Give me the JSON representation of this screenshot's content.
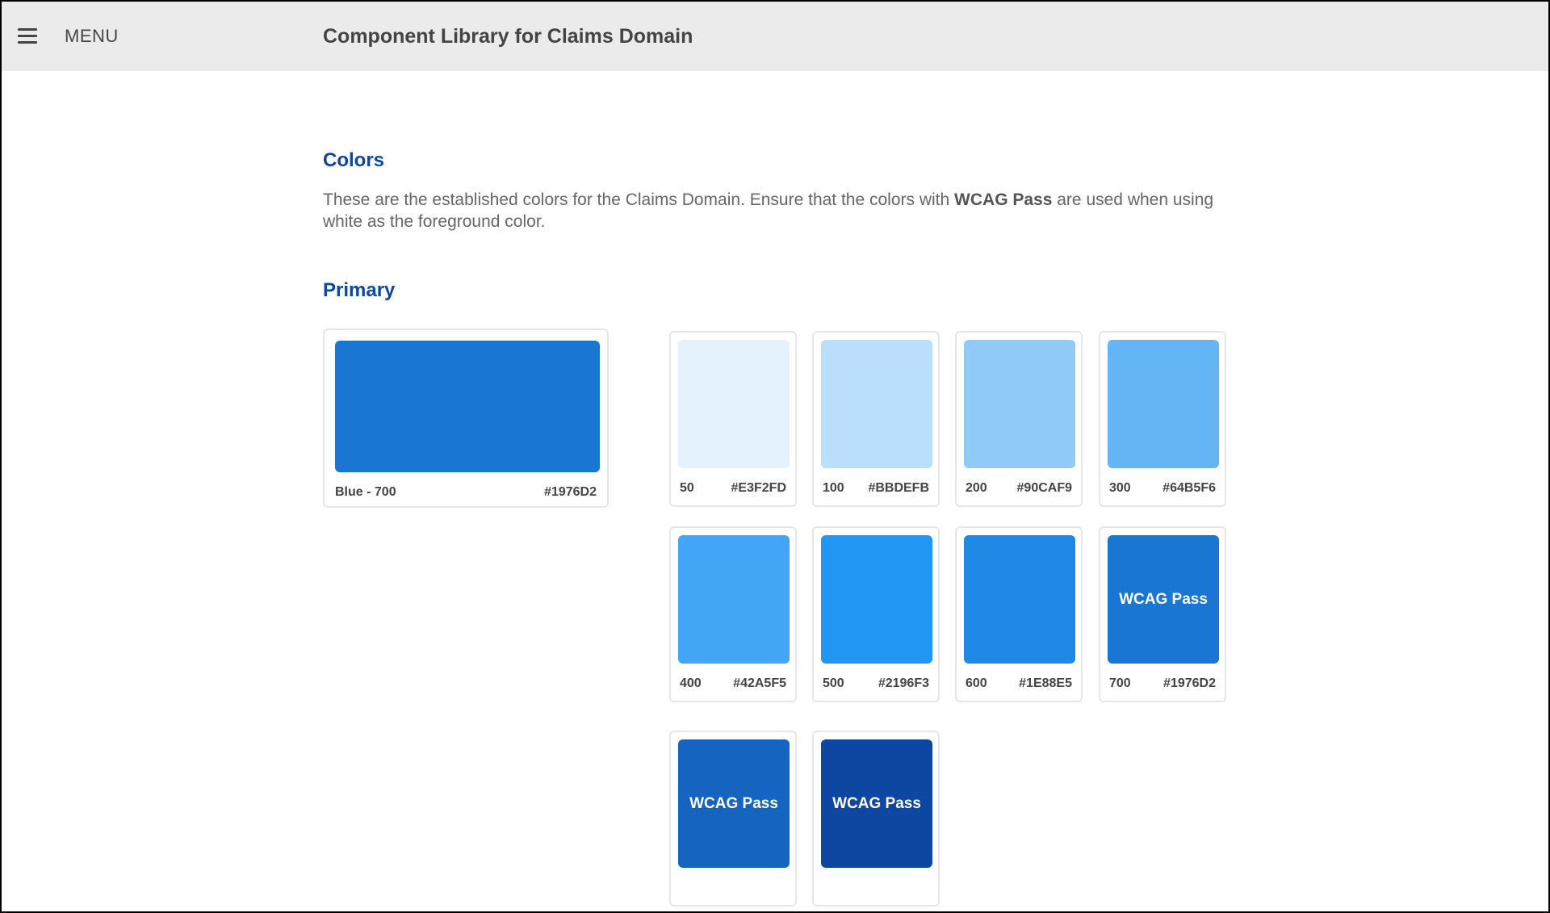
{
  "header": {
    "menu_label": "MENU",
    "title": "Component Library for Claims Domain"
  },
  "colors_section": {
    "title": "Colors",
    "description_pre": "These are the established colors for the Claims Domain. Ensure that the colors with ",
    "description_bold": "WCAG Pass",
    "description_post": " are used when using white as the foreground color."
  },
  "primary": {
    "title": "Primary",
    "main": {
      "name": "Blue - 700",
      "hex": "#1976D2"
    },
    "shades": [
      {
        "shade": "50",
        "hex": "#E3F2FD",
        "wcag": ""
      },
      {
        "shade": "100",
        "hex": "#BBDEFB",
        "wcag": ""
      },
      {
        "shade": "200",
        "hex": "#90CAF9",
        "wcag": ""
      },
      {
        "shade": "300",
        "hex": "#64B5F6",
        "wcag": ""
      },
      {
        "shade": "400",
        "hex": "#42A5F5",
        "wcag": ""
      },
      {
        "shade": "500",
        "hex": "#2196F3",
        "wcag": ""
      },
      {
        "shade": "600",
        "hex": "#1E88E5",
        "wcag": ""
      },
      {
        "shade": "700",
        "hex": "#1976D2",
        "wcag": "WCAG Pass"
      },
      {
        "shade": "",
        "hex": "",
        "wcag": "WCAG Pass",
        "swatch_color": "#1565C0"
      },
      {
        "shade": "",
        "hex": "",
        "wcag": "WCAG Pass",
        "swatch_color": "#0D47A1"
      }
    ]
  }
}
